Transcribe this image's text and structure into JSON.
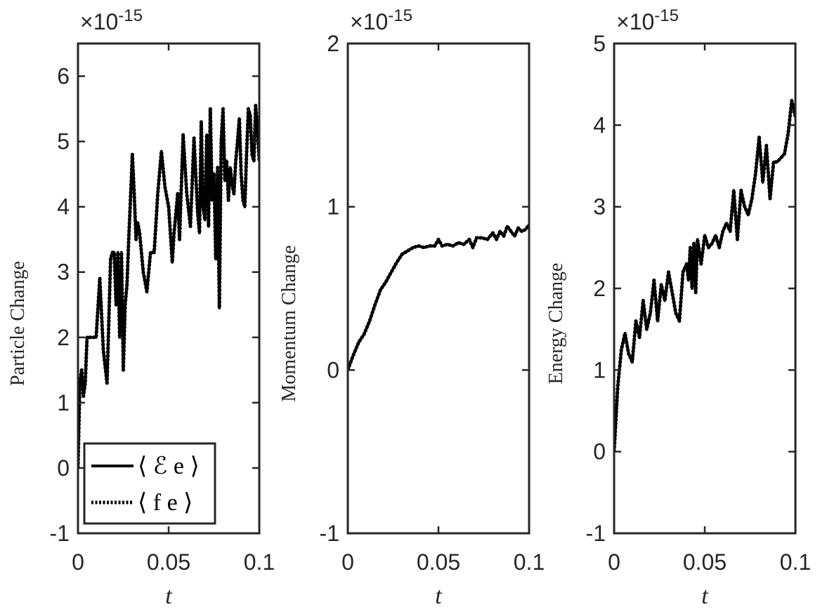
{
  "chart_data": [
    {
      "type": "line",
      "title": "",
      "xlabel": "t",
      "ylabel": "Particle Change",
      "exponent_label": "×10",
      "exponent_power": "-15",
      "xlim": [
        0,
        0.1
      ],
      "ylim": [
        -1,
        6.5
      ],
      "xticks": [
        0,
        0.05,
        0.1
      ],
      "xtick_labels": [
        "0",
        "0.05",
        "0.1"
      ],
      "yticks": [
        -1,
        0,
        1,
        2,
        3,
        4,
        5,
        6
      ],
      "ytick_labels": [
        "-1",
        "0",
        "1",
        "2",
        "3",
        "4",
        "5",
        "6"
      ],
      "legend": {
        "placement": "bottom-left",
        "entries": [
          {
            "label": "⟨ ℰ e ⟩",
            "style": "solid"
          },
          {
            "label": "⟨ f e ⟩",
            "style": "dotted"
          }
        ]
      },
      "series": [
        {
          "name": "⟨ ℰ e ⟩",
          "color": "#000000",
          "style": "solid",
          "x": [
            0,
            0.001,
            0.002,
            0.003,
            0.004,
            0.005,
            0.006,
            0.008,
            0.01,
            0.012,
            0.014,
            0.016,
            0.018,
            0.019,
            0.02,
            0.021,
            0.022,
            0.023,
            0.024,
            0.025,
            0.026,
            0.027,
            0.028,
            0.03,
            0.031,
            0.032,
            0.033,
            0.034,
            0.035,
            0.036,
            0.038,
            0.04,
            0.042,
            0.044,
            0.046,
            0.048,
            0.05,
            0.052,
            0.053,
            0.055,
            0.056,
            0.058,
            0.06,
            0.062,
            0.064,
            0.066,
            0.067,
            0.068,
            0.069,
            0.07,
            0.071,
            0.072,
            0.073,
            0.074,
            0.075,
            0.076,
            0.077,
            0.078,
            0.079,
            0.08,
            0.081,
            0.082,
            0.083,
            0.084,
            0.085,
            0.086,
            0.087,
            0.088,
            0.089,
            0.09,
            0.091,
            0.092,
            0.093,
            0.094,
            0.095,
            0.096,
            0.097,
            0.098,
            0.099,
            0.1
          ],
          "y": [
            0,
            1.3,
            1.5,
            1.1,
            1.3,
            2.0,
            2.0,
            2.0,
            2.0,
            2.9,
            1.8,
            1.3,
            3.2,
            3.3,
            3.3,
            2.5,
            3.3,
            2.0,
            3.3,
            1.5,
            2.5,
            2.8,
            3.5,
            4.8,
            4.2,
            3.5,
            3.75,
            3.6,
            3.3,
            3.0,
            2.7,
            3.3,
            3.3,
            4.2,
            4.85,
            4.3,
            4.0,
            3.15,
            3.6,
            4.2,
            3.5,
            5.1,
            4.2,
            3.7,
            5.05,
            3.9,
            3.6,
            5.3,
            4.0,
            3.8,
            5.1,
            3.7,
            5.5,
            4.1,
            4.5,
            3.2,
            4.6,
            2.45,
            5.0,
            5.5,
            4.4,
            4.7,
            4.1,
            4.6,
            4.35,
            4.2,
            4.7,
            5.0,
            5.35,
            4.5,
            4.1,
            4.0,
            4.8,
            5.5,
            5.4,
            4.8,
            4.7,
            5.55,
            5.2,
            4.7
          ]
        },
        {
          "name": "⟨ f e ⟩",
          "color": "#000000",
          "style": "dotted",
          "x": [
            0,
            0.001,
            0.002,
            0.003,
            0.004,
            0.005,
            0.006,
            0.008,
            0.01,
            0.012,
            0.014,
            0.016,
            0.018,
            0.019,
            0.02,
            0.021,
            0.022,
            0.023,
            0.024,
            0.025,
            0.026,
            0.027,
            0.028,
            0.03,
            0.031,
            0.032,
            0.033,
            0.034,
            0.035,
            0.036,
            0.038,
            0.04,
            0.042,
            0.044,
            0.046,
            0.048,
            0.05,
            0.052,
            0.053,
            0.055,
            0.056,
            0.058,
            0.06,
            0.062,
            0.064,
            0.066,
            0.067,
            0.068,
            0.069,
            0.07,
            0.071,
            0.072,
            0.073,
            0.074,
            0.075,
            0.076,
            0.077,
            0.078,
            0.079,
            0.08,
            0.081,
            0.082,
            0.083,
            0.084,
            0.085,
            0.086,
            0.087,
            0.088,
            0.089,
            0.09,
            0.091,
            0.092,
            0.093,
            0.094,
            0.095,
            0.096,
            0.097,
            0.098,
            0.099,
            0.1
          ],
          "y": [
            0,
            1.3,
            1.5,
            1.1,
            1.3,
            2.0,
            2.0,
            2.0,
            2.0,
            2.9,
            1.8,
            1.3,
            3.2,
            3.3,
            3.3,
            2.5,
            3.3,
            2.0,
            3.3,
            1.5,
            2.5,
            2.8,
            3.5,
            4.8,
            4.2,
            3.5,
            3.75,
            3.6,
            3.3,
            3.0,
            2.7,
            3.3,
            3.3,
            4.2,
            4.85,
            4.3,
            4.0,
            3.15,
            3.6,
            4.2,
            3.5,
            5.1,
            4.2,
            3.7,
            5.05,
            3.9,
            3.6,
            5.3,
            4.0,
            3.8,
            5.1,
            3.7,
            5.5,
            4.1,
            4.5,
            3.2,
            4.6,
            2.45,
            5.0,
            5.5,
            4.4,
            4.7,
            4.1,
            4.6,
            4.35,
            4.2,
            4.7,
            5.0,
            5.35,
            4.5,
            4.1,
            4.0,
            4.8,
            5.5,
            5.4,
            4.8,
            4.7,
            5.55,
            5.2,
            4.7
          ]
        }
      ]
    },
    {
      "type": "line",
      "title": "",
      "xlabel": "t",
      "ylabel": "Momentum Change",
      "exponent_label": "×10",
      "exponent_power": "-15",
      "xlim": [
        0,
        0.1
      ],
      "ylim": [
        -1,
        2
      ],
      "xticks": [
        0,
        0.05,
        0.1
      ],
      "xtick_labels": [
        "0",
        "0.05",
        "0.1"
      ],
      "yticks": [
        -1,
        0,
        1,
        2
      ],
      "ytick_labels": [
        "-1",
        "0",
        "1",
        "2"
      ],
      "series": [
        {
          "name": "⟨ ℰ e ⟩",
          "color": "#000000",
          "style": "solid",
          "x": [
            0,
            0.003,
            0.006,
            0.009,
            0.012,
            0.015,
            0.018,
            0.021,
            0.024,
            0.027,
            0.03,
            0.033,
            0.036,
            0.039,
            0.042,
            0.045,
            0.048,
            0.05,
            0.052,
            0.055,
            0.058,
            0.061,
            0.064,
            0.067,
            0.069,
            0.071,
            0.074,
            0.077,
            0.08,
            0.082,
            0.084,
            0.086,
            0.088,
            0.09,
            0.092,
            0.094,
            0.096,
            0.098,
            0.1
          ],
          "y": [
            0,
            0.09,
            0.17,
            0.22,
            0.3,
            0.4,
            0.49,
            0.54,
            0.6,
            0.66,
            0.71,
            0.73,
            0.75,
            0.76,
            0.75,
            0.76,
            0.76,
            0.8,
            0.76,
            0.77,
            0.76,
            0.78,
            0.77,
            0.8,
            0.75,
            0.81,
            0.81,
            0.8,
            0.84,
            0.8,
            0.85,
            0.82,
            0.88,
            0.85,
            0.82,
            0.87,
            0.85,
            0.86,
            0.89
          ]
        },
        {
          "name": "⟨ f e ⟩",
          "color": "#000000",
          "style": "dotted",
          "x": [
            0,
            0.003,
            0.006,
            0.009,
            0.012,
            0.015,
            0.018,
            0.021,
            0.024,
            0.027,
            0.03,
            0.033,
            0.036,
            0.039,
            0.042,
            0.045,
            0.048,
            0.05,
            0.052,
            0.055,
            0.058,
            0.061,
            0.064,
            0.067,
            0.069,
            0.071,
            0.074,
            0.077,
            0.08,
            0.082,
            0.084,
            0.086,
            0.088,
            0.09,
            0.092,
            0.094,
            0.096,
            0.098,
            0.1
          ],
          "y": [
            0,
            0.09,
            0.17,
            0.22,
            0.3,
            0.4,
            0.49,
            0.54,
            0.6,
            0.66,
            0.71,
            0.73,
            0.75,
            0.76,
            0.75,
            0.76,
            0.76,
            0.8,
            0.76,
            0.77,
            0.76,
            0.78,
            0.77,
            0.8,
            0.75,
            0.81,
            0.81,
            0.8,
            0.84,
            0.8,
            0.85,
            0.82,
            0.88,
            0.85,
            0.82,
            0.87,
            0.85,
            0.86,
            0.89
          ]
        }
      ]
    },
    {
      "type": "line",
      "title": "",
      "xlabel": "t",
      "ylabel": "Energy Change",
      "exponent_label": "×10",
      "exponent_power": "-15",
      "xlim": [
        0,
        0.1
      ],
      "ylim": [
        -1,
        5
      ],
      "xticks": [
        0,
        0.05,
        0.1
      ],
      "xtick_labels": [
        "0",
        "0.05",
        "0.1"
      ],
      "yticks": [
        -1,
        0,
        1,
        2,
        3,
        4,
        5
      ],
      "ytick_labels": [
        "-1",
        "0",
        "1",
        "2",
        "3",
        "4",
        "5"
      ],
      "series": [
        {
          "name": "⟨ ℰ e ⟩",
          "color": "#000000",
          "style": "solid",
          "x": [
            0,
            0.002,
            0.004,
            0.006,
            0.008,
            0.01,
            0.012,
            0.014,
            0.016,
            0.018,
            0.02,
            0.022,
            0.024,
            0.026,
            0.028,
            0.03,
            0.032,
            0.034,
            0.036,
            0.038,
            0.04,
            0.041,
            0.042,
            0.043,
            0.044,
            0.045,
            0.046,
            0.047,
            0.048,
            0.05,
            0.052,
            0.054,
            0.056,
            0.058,
            0.06,
            0.062,
            0.064,
            0.066,
            0.068,
            0.07,
            0.072,
            0.074,
            0.076,
            0.078,
            0.08,
            0.082,
            0.084,
            0.086,
            0.088,
            0.09,
            0.092,
            0.094,
            0.096,
            0.098,
            0.1
          ],
          "y": [
            0,
            0.8,
            1.25,
            1.45,
            1.2,
            1.1,
            1.6,
            1.4,
            1.85,
            1.5,
            1.7,
            2.1,
            1.6,
            2.05,
            1.85,
            2.2,
            1.95,
            1.7,
            1.6,
            2.2,
            2.3,
            2.1,
            2.5,
            2.0,
            2.55,
            1.95,
            2.6,
            2.45,
            2.3,
            2.65,
            2.5,
            2.55,
            2.65,
            2.5,
            2.7,
            2.8,
            2.7,
            3.2,
            2.6,
            3.2,
            3.0,
            2.9,
            3.1,
            3.4,
            3.85,
            3.3,
            3.75,
            3.1,
            3.55,
            3.55,
            3.6,
            3.65,
            3.9,
            4.3,
            4.1
          ]
        },
        {
          "name": "⟨ f e ⟩",
          "color": "#000000",
          "style": "dotted",
          "x": [
            0,
            0.002,
            0.004,
            0.006,
            0.008,
            0.01,
            0.012,
            0.014,
            0.016,
            0.018,
            0.02,
            0.022,
            0.024,
            0.026,
            0.028,
            0.03,
            0.032,
            0.034,
            0.036,
            0.038,
            0.04,
            0.041,
            0.042,
            0.043,
            0.044,
            0.045,
            0.046,
            0.047,
            0.048,
            0.05,
            0.052,
            0.054,
            0.056,
            0.058,
            0.06,
            0.062,
            0.064,
            0.066,
            0.068,
            0.07,
            0.072,
            0.074,
            0.076,
            0.078,
            0.08,
            0.082,
            0.084,
            0.086,
            0.088,
            0.09,
            0.092,
            0.094,
            0.096,
            0.098,
            0.1
          ],
          "y": [
            0,
            0.8,
            1.25,
            1.45,
            1.2,
            1.1,
            1.6,
            1.4,
            1.85,
            1.5,
            1.7,
            2.1,
            1.6,
            2.05,
            1.85,
            2.2,
            1.95,
            1.7,
            1.6,
            2.2,
            2.3,
            2.1,
            2.5,
            2.0,
            2.55,
            1.95,
            2.6,
            2.45,
            2.3,
            2.65,
            2.5,
            2.55,
            2.65,
            2.5,
            2.7,
            2.8,
            2.7,
            3.2,
            2.6,
            3.2,
            3.0,
            2.9,
            3.1,
            3.4,
            3.85,
            3.3,
            3.75,
            3.1,
            3.55,
            3.55,
            3.6,
            3.65,
            3.9,
            4.3,
            4.1
          ]
        }
      ]
    }
  ]
}
